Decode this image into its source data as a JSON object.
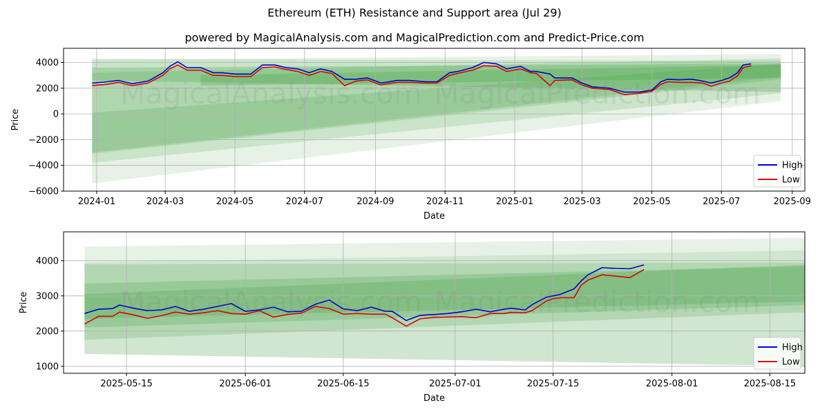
{
  "title": "Ethereum (ETH) Resistance and Support area (Jul 29)",
  "subtitle": "powered by MagicalAnalysis.com and MagicalPrediction.com and Predict-Price.com",
  "watermarks": [
    "MagicalAnalysis.com",
    "MagicalPrediction.com"
  ],
  "colors": {
    "high": "#0000cc",
    "low": "#dd0000",
    "band": "#3a9a3a",
    "grid": "#b0b0b0"
  },
  "chart_data": [
    {
      "type": "line",
      "xlabel": "Date",
      "ylabel": "Price",
      "xlim": [
        "2023-12-03",
        "2025-09-12"
      ],
      "ylim": [
        -6000,
        5100
      ],
      "grid": true,
      "legend": "bottom-right",
      "x_ticks": [
        "2024-01-01",
        "2024-03-01",
        "2024-05-01",
        "2024-07-01",
        "2024-09-01",
        "2024-11-01",
        "2025-01-01",
        "2025-03-01",
        "2025-05-01",
        "2025-07-01",
        "2025-09-01"
      ],
      "x_tick_labels": [
        "2024-01",
        "2024-03",
        "2024-05",
        "2024-07",
        "2024-09",
        "2024-11",
        "2025-01",
        "2025-03",
        "2025-05",
        "2025-07",
        "2025-09"
      ],
      "y_ticks": [
        -6000,
        -4000,
        -2000,
        0,
        2000,
        4000
      ],
      "y_tick_labels": [
        "−6000",
        "−4000",
        "−2000",
        "0",
        "2000",
        "4000"
      ],
      "bands": [
        {
          "x": [
            "2023-12-28",
            "2025-08-22"
          ],
          "upper": [
            4200,
            4650
          ],
          "lower": [
            -5400,
            1000
          ],
          "opacity": 0.13
        },
        {
          "x": [
            "2023-12-28",
            "2025-08-22"
          ],
          "upper": [
            4300,
            4100
          ],
          "lower": [
            -3800,
            1600
          ],
          "opacity": 0.16
        },
        {
          "x": [
            "2023-12-28",
            "2025-08-22"
          ],
          "upper": [
            3200,
            4300
          ],
          "lower": [
            -3100,
            2700
          ],
          "opacity": 0.18
        },
        {
          "x": [
            "2023-12-28",
            "2025-08-22"
          ],
          "upper": [
            100,
            3900
          ],
          "lower": [
            -3000,
            2900
          ],
          "opacity": 0.2
        },
        {
          "x": [
            "2023-12-28",
            "2025-08-22"
          ],
          "upper": [
            3600,
            3900
          ],
          "lower": [
            2600,
            1700
          ],
          "opacity": 0.25
        },
        {
          "x": [
            "2024-04-01",
            "2025-08-22"
          ],
          "upper": [
            3000,
            3800
          ],
          "lower": [
            2200,
            2800
          ],
          "opacity": 0.25
        }
      ],
      "series": [
        {
          "name": "High",
          "x": [
            "2023-12-28",
            "2024-01-10",
            "2024-01-20",
            "2024-02-01",
            "2024-02-15",
            "2024-02-28",
            "2024-03-05",
            "2024-03-12",
            "2024-03-20",
            "2024-04-01",
            "2024-04-12",
            "2024-04-20",
            "2024-05-01",
            "2024-05-15",
            "2024-05-25",
            "2024-06-05",
            "2024-06-15",
            "2024-06-25",
            "2024-07-05",
            "2024-07-15",
            "2024-07-25",
            "2024-08-05",
            "2024-08-15",
            "2024-08-25",
            "2024-09-06",
            "2024-09-20",
            "2024-10-01",
            "2024-10-15",
            "2024-10-25",
            "2024-11-05",
            "2024-11-12",
            "2024-11-25",
            "2024-12-05",
            "2024-12-16",
            "2024-12-25",
            "2025-01-06",
            "2025-01-15",
            "2025-01-20",
            "2025-02-01",
            "2025-02-05",
            "2025-02-20",
            "2025-03-01",
            "2025-03-10",
            "2025-03-25",
            "2025-04-07",
            "2025-04-20",
            "2025-05-01",
            "2025-05-09",
            "2025-05-15",
            "2025-05-25",
            "2025-06-05",
            "2025-06-15",
            "2025-06-22",
            "2025-07-01",
            "2025-07-08",
            "2025-07-15",
            "2025-07-20",
            "2025-07-27"
          ],
          "values": [
            2400,
            2500,
            2600,
            2350,
            2550,
            3200,
            3700,
            4050,
            3600,
            3600,
            3200,
            3200,
            3100,
            3100,
            3800,
            3800,
            3600,
            3500,
            3200,
            3500,
            3300,
            2700,
            2700,
            2800,
            2400,
            2600,
            2600,
            2500,
            2500,
            3200,
            3300,
            3600,
            4000,
            3900,
            3500,
            3700,
            3300,
            3300,
            3100,
            2800,
            2800,
            2400,
            2100,
            2000,
            1700,
            1700,
            1850,
            2500,
            2700,
            2650,
            2700,
            2550,
            2400,
            2600,
            2800,
            3200,
            3800,
            3900
          ]
        },
        {
          "name": "Low",
          "x": [
            "2023-12-28",
            "2024-01-10",
            "2024-01-20",
            "2024-02-01",
            "2024-02-15",
            "2024-02-28",
            "2024-03-05",
            "2024-03-12",
            "2024-03-20",
            "2024-04-01",
            "2024-04-12",
            "2024-04-20",
            "2024-05-01",
            "2024-05-15",
            "2024-05-25",
            "2024-06-05",
            "2024-06-15",
            "2024-06-25",
            "2024-07-05",
            "2024-07-15",
            "2024-07-25",
            "2024-08-05",
            "2024-08-15",
            "2024-08-25",
            "2024-09-06",
            "2024-09-20",
            "2024-10-01",
            "2024-10-15",
            "2024-10-25",
            "2024-11-05",
            "2024-11-12",
            "2024-11-25",
            "2024-12-05",
            "2024-12-16",
            "2024-12-25",
            "2025-01-06",
            "2025-01-15",
            "2025-01-20",
            "2025-02-01",
            "2025-02-05",
            "2025-02-20",
            "2025-03-01",
            "2025-03-10",
            "2025-03-25",
            "2025-04-07",
            "2025-04-20",
            "2025-05-01",
            "2025-05-09",
            "2025-05-15",
            "2025-05-25",
            "2025-06-05",
            "2025-06-15",
            "2025-06-22",
            "2025-07-01",
            "2025-07-08",
            "2025-07-15",
            "2025-07-20",
            "2025-07-27"
          ],
          "values": [
            2200,
            2300,
            2450,
            2200,
            2400,
            3000,
            3500,
            3800,
            3400,
            3400,
            3000,
            3000,
            2900,
            2900,
            3600,
            3650,
            3450,
            3300,
            3000,
            3300,
            3150,
            2200,
            2550,
            2650,
            2250,
            2450,
            2450,
            2400,
            2400,
            3000,
            3150,
            3400,
            3750,
            3700,
            3300,
            3500,
            3200,
            3150,
            2200,
            2600,
            2650,
            2250,
            2000,
            1900,
            1500,
            1600,
            1750,
            2300,
            2500,
            2450,
            2450,
            2400,
            2150,
            2400,
            2550,
            2950,
            3600,
            3750
          ]
        }
      ]
    },
    {
      "type": "line",
      "xlabel": "Date",
      "ylabel": "Price",
      "xlim": [
        "2025-05-06",
        "2025-08-20"
      ],
      "ylim": [
        800,
        4820
      ],
      "grid": true,
      "legend": "bottom-right",
      "x_ticks": [
        "2025-05-15",
        "2025-06-01",
        "2025-06-15",
        "2025-07-01",
        "2025-07-15",
        "2025-08-01",
        "2025-08-15"
      ],
      "x_tick_labels": [
        "2025-05-15",
        "2025-06-01",
        "2025-06-15",
        "2025-07-01",
        "2025-07-15",
        "2025-08-01",
        "2025-08-15"
      ],
      "y_ticks": [
        1000,
        2000,
        3000,
        4000
      ],
      "y_tick_labels": [
        "1000",
        "2000",
        "3000",
        "4000"
      ],
      "bands": [
        {
          "x": [
            "2025-05-09",
            "2025-08-22"
          ],
          "upper": [
            4400,
            4650
          ],
          "lower": [
            1350,
            1000
          ],
          "opacity": 0.13
        },
        {
          "x": [
            "2025-05-09",
            "2025-08-22"
          ],
          "upper": [
            3950,
            4300
          ],
          "lower": [
            1350,
            1000
          ],
          "opacity": 0.13
        },
        {
          "x": [
            "2025-05-09",
            "2025-08-22"
          ],
          "upper": [
            3900,
            3950
          ],
          "lower": [
            1750,
            2550
          ],
          "opacity": 0.2
        },
        {
          "x": [
            "2025-05-09",
            "2025-08-22"
          ],
          "upper": [
            3350,
            3850
          ],
          "lower": [
            2100,
            2750
          ],
          "opacity": 0.22
        },
        {
          "x": [
            "2025-05-09",
            "2025-08-22"
          ],
          "upper": [
            3050,
            3900
          ],
          "lower": [
            2350,
            2850
          ],
          "opacity": 0.22
        }
      ],
      "series": [
        {
          "name": "High",
          "x": [
            "2025-05-09",
            "2025-05-11",
            "2025-05-13",
            "2025-05-14",
            "2025-05-16",
            "2025-05-18",
            "2025-05-20",
            "2025-05-22",
            "2025-05-24",
            "2025-05-26",
            "2025-05-28",
            "2025-05-30",
            "2025-06-01",
            "2025-06-03",
            "2025-06-05",
            "2025-06-07",
            "2025-06-09",
            "2025-06-11",
            "2025-06-13",
            "2025-06-15",
            "2025-06-17",
            "2025-06-19",
            "2025-06-21",
            "2025-06-22",
            "2025-06-24",
            "2025-06-26",
            "2025-06-28",
            "2025-06-30",
            "2025-07-02",
            "2025-07-04",
            "2025-07-06",
            "2025-07-08",
            "2025-07-09",
            "2025-07-11",
            "2025-07-12",
            "2025-07-14",
            "2025-07-15",
            "2025-07-16",
            "2025-07-18",
            "2025-07-19",
            "2025-07-20",
            "2025-07-22",
            "2025-07-24",
            "2025-07-26",
            "2025-07-28"
          ],
          "values": [
            2500,
            2620,
            2640,
            2740,
            2650,
            2580,
            2600,
            2700,
            2560,
            2620,
            2700,
            2780,
            2560,
            2600,
            2680,
            2550,
            2560,
            2760,
            2880,
            2630,
            2580,
            2680,
            2560,
            2560,
            2300,
            2450,
            2470,
            2500,
            2550,
            2620,
            2550,
            2620,
            2650,
            2600,
            2750,
            2960,
            3000,
            3040,
            3200,
            3420,
            3600,
            3800,
            3780,
            3770,
            3880
          ]
        },
        {
          "name": "Low",
          "x": [
            "2025-05-09",
            "2025-05-11",
            "2025-05-13",
            "2025-05-14",
            "2025-05-16",
            "2025-05-18",
            "2025-05-20",
            "2025-05-22",
            "2025-05-24",
            "2025-05-26",
            "2025-05-28",
            "2025-05-30",
            "2025-06-01",
            "2025-06-03",
            "2025-06-05",
            "2025-06-07",
            "2025-06-09",
            "2025-06-11",
            "2025-06-13",
            "2025-06-15",
            "2025-06-17",
            "2025-06-19",
            "2025-06-21",
            "2025-06-22",
            "2025-06-24",
            "2025-06-26",
            "2025-06-28",
            "2025-06-30",
            "2025-07-02",
            "2025-07-04",
            "2025-07-06",
            "2025-07-08",
            "2025-07-09",
            "2025-07-11",
            "2025-07-12",
            "2025-07-14",
            "2025-07-15",
            "2025-07-16",
            "2025-07-18",
            "2025-07-19",
            "2025-07-20",
            "2025-07-22",
            "2025-07-24",
            "2025-07-26",
            "2025-07-28"
          ],
          "values": [
            2200,
            2420,
            2420,
            2540,
            2460,
            2360,
            2440,
            2540,
            2480,
            2520,
            2580,
            2500,
            2480,
            2580,
            2400,
            2470,
            2510,
            2700,
            2640,
            2480,
            2500,
            2480,
            2480,
            2380,
            2140,
            2350,
            2390,
            2400,
            2410,
            2380,
            2500,
            2500,
            2530,
            2520,
            2580,
            2850,
            2920,
            2950,
            2950,
            3300,
            3450,
            3600,
            3560,
            3520,
            3750
          ]
        }
      ]
    }
  ]
}
